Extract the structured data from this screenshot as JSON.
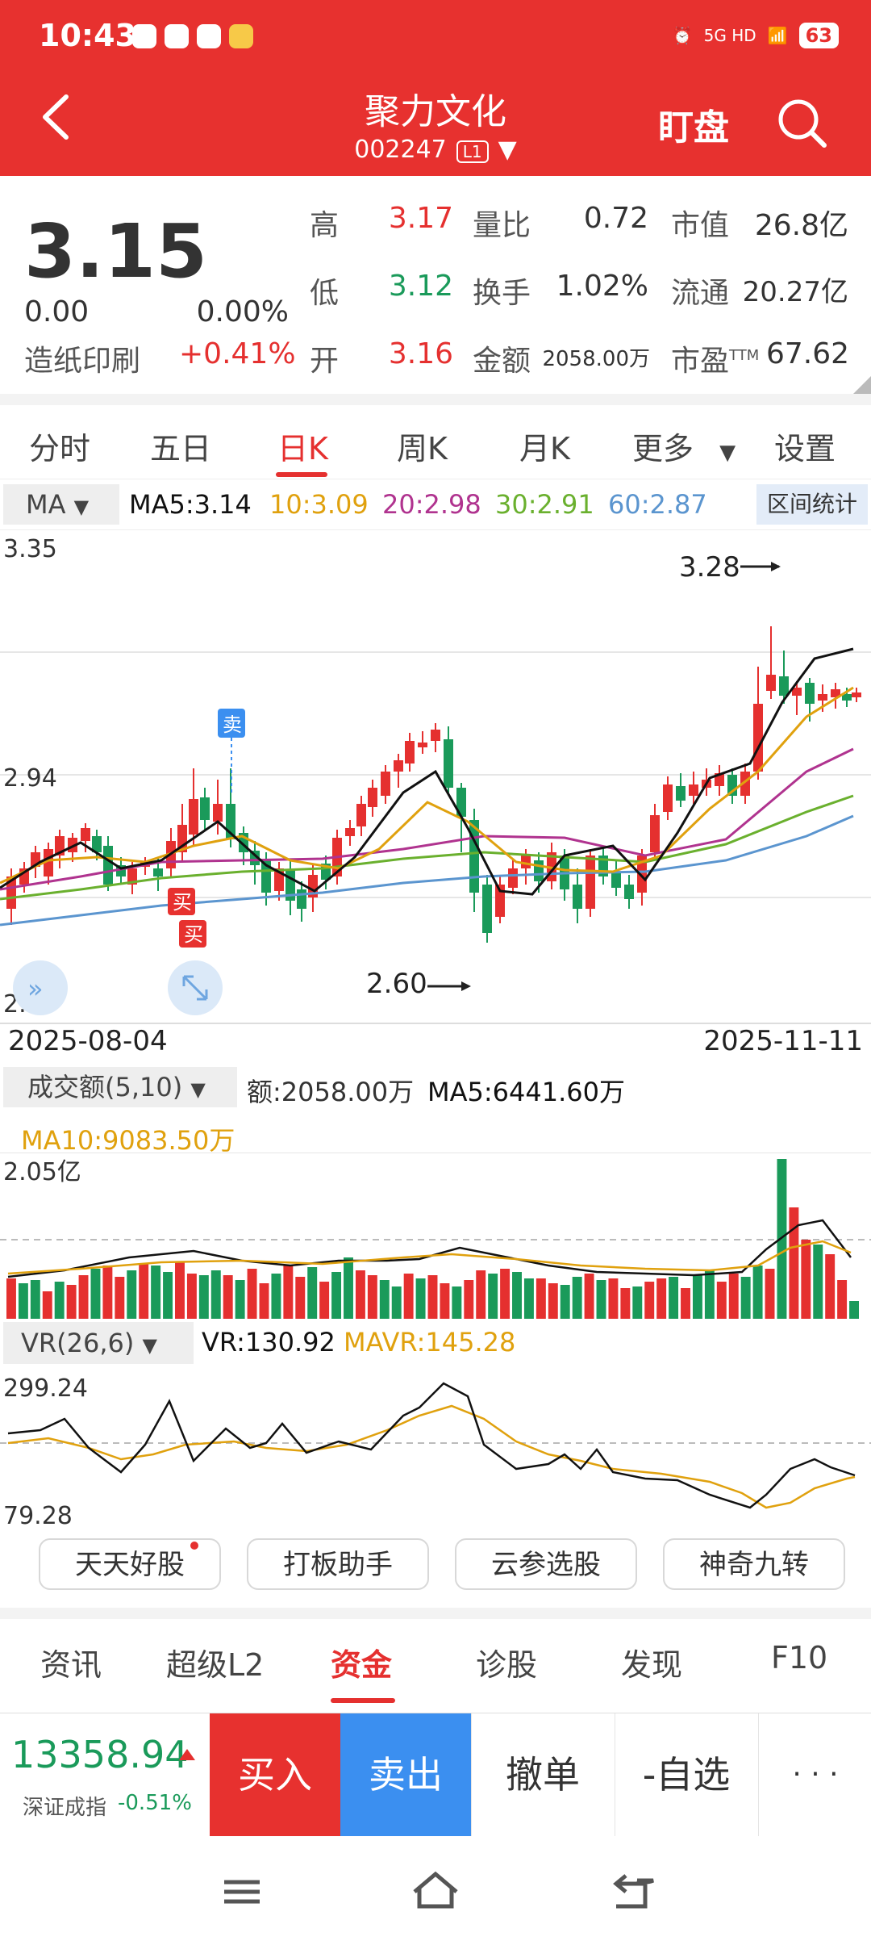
{
  "status_bar": {
    "time": "10:43",
    "signal": "5G HD",
    "battery": "63"
  },
  "header": {
    "stock_name": "聚力文化",
    "stock_code": "002247",
    "level": "L1",
    "watch_label": "盯盘"
  },
  "quote": {
    "price": "3.15",
    "change": "0.00",
    "change_pct": "0.00%",
    "sector": "造纸印刷",
    "sector_change": "+0.41%",
    "high_label": "高",
    "high": "3.17",
    "low_label": "低",
    "low": "3.12",
    "open_label": "开",
    "open": "3.16",
    "vol_ratio_label": "量比",
    "vol_ratio": "0.72",
    "turnover_label": "换手",
    "turnover": "1.02%",
    "amount_label": "金额",
    "amount": "2058.00万",
    "mkt_cap_label": "市值",
    "mkt_cap": "26.8亿",
    "float_cap_label": "流通",
    "float_cap": "20.27亿",
    "pe_label": "市盈",
    "pe_sup": "TTM",
    "pe": "67.62"
  },
  "period_tabs": [
    "分时",
    "五日",
    "日K",
    "周K",
    "月K",
    "更多",
    "设置"
  ],
  "ma_row": {
    "selector": "MA",
    "ma5": "MA5:3.14",
    "ma10": "10:3.09",
    "ma20": "20:2.98",
    "ma30": "30:2.91",
    "ma60": "60:2.87",
    "range_stat": "区间统计"
  },
  "colors": {
    "up": "#e5302f",
    "down": "#1a9a5a",
    "ma5": "#111111",
    "ma10": "#e0a10e",
    "ma20": "#b0338f",
    "ma30": "#6ab02e",
    "ma60": "#5b95cf",
    "buy": "#e7312f",
    "sell": "#3b8ff0"
  },
  "kline": {
    "y_labels": {
      "top": "3.35",
      "mid": "2.94",
      "bottom": "2.53"
    },
    "max_annotation": "3.28",
    "min_annotation": "2.60",
    "sell_marker": "卖",
    "buy_marker_1": "买",
    "buy_marker_2": "买",
    "start_date": "2025-08-04",
    "end_date": "2025-11-11"
  },
  "volume": {
    "selector": "成交额(5,10)",
    "amount": "额:2058.00万",
    "ma5": "MA5:6441.60万",
    "ma10": "MA10:9083.50万",
    "y_max": "2.05亿"
  },
  "vr": {
    "selector": "VR(26,6)",
    "vr": "VR:130.92",
    "mavr": "MAVR:145.28",
    "y_max": "299.24",
    "y_min": "79.28"
  },
  "tools": [
    "天天好股",
    "打板助手",
    "云参选股",
    "神奇九转"
  ],
  "bottom_tabs": [
    "资讯",
    "超级L2",
    "资金",
    "诊股",
    "发现",
    "F10"
  ],
  "trade_bar": {
    "index_value": "13358.94",
    "index_name": "深证成指",
    "index_change": "-0.51%",
    "buy": "买入",
    "sell": "卖出",
    "cancel": "撤单",
    "watchlist": "-自选",
    "more": "· · ·"
  }
}
